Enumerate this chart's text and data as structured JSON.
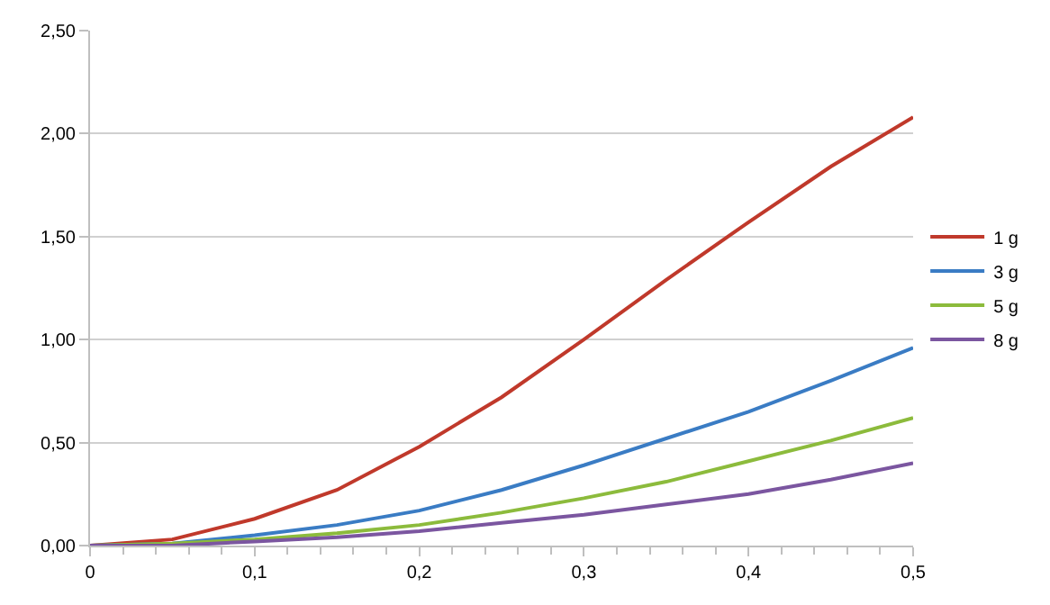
{
  "chart_data": {
    "type": "line",
    "x": [
      0,
      0.05,
      0.1,
      0.15,
      0.2,
      0.25,
      0.3,
      0.35,
      0.4,
      0.45,
      0.5
    ],
    "series": [
      {
        "name": "1 g",
        "color": "#c0392b",
        "values": [
          0,
          0.03,
          0.13,
          0.27,
          0.48,
          0.72,
          1.0,
          1.29,
          1.57,
          1.84,
          2.08
        ]
      },
      {
        "name": "3 g",
        "color": "#3a7cc4",
        "values": [
          0,
          0.01,
          0.05,
          0.1,
          0.17,
          0.27,
          0.39,
          0.52,
          0.65,
          0.8,
          0.96
        ]
      },
      {
        "name": "5 g",
        "color": "#8cbb3c",
        "values": [
          0,
          0.01,
          0.03,
          0.06,
          0.1,
          0.16,
          0.23,
          0.31,
          0.41,
          0.51,
          0.62
        ]
      },
      {
        "name": "8 g",
        "color": "#7b56a0",
        "values": [
          0,
          0.0,
          0.02,
          0.04,
          0.07,
          0.11,
          0.15,
          0.2,
          0.25,
          0.32,
          0.4
        ]
      }
    ],
    "xlim": [
      0,
      0.5
    ],
    "xticks": [
      {
        "value": 0,
        "label": "0"
      },
      {
        "value": 0.1,
        "label": "0,1"
      },
      {
        "value": 0.2,
        "label": "0,2"
      },
      {
        "value": 0.3,
        "label": "0,3"
      },
      {
        "value": 0.4,
        "label": "0,4"
      },
      {
        "value": 0.5,
        "label": "0,5"
      }
    ],
    "ylim": [
      0,
      2.5
    ],
    "yticks": [
      {
        "value": 0,
        "label": "0,00"
      },
      {
        "value": 0.5,
        "label": "0,50"
      },
      {
        "value": 1,
        "label": "1,00"
      },
      {
        "value": 1.5,
        "label": "1,50"
      },
      {
        "value": 2,
        "label": "2,00"
      },
      {
        "value": 2.5,
        "label": "2,50"
      }
    ],
    "grid": "y",
    "legend": "right",
    "marker": "none",
    "line_style": "solid"
  }
}
